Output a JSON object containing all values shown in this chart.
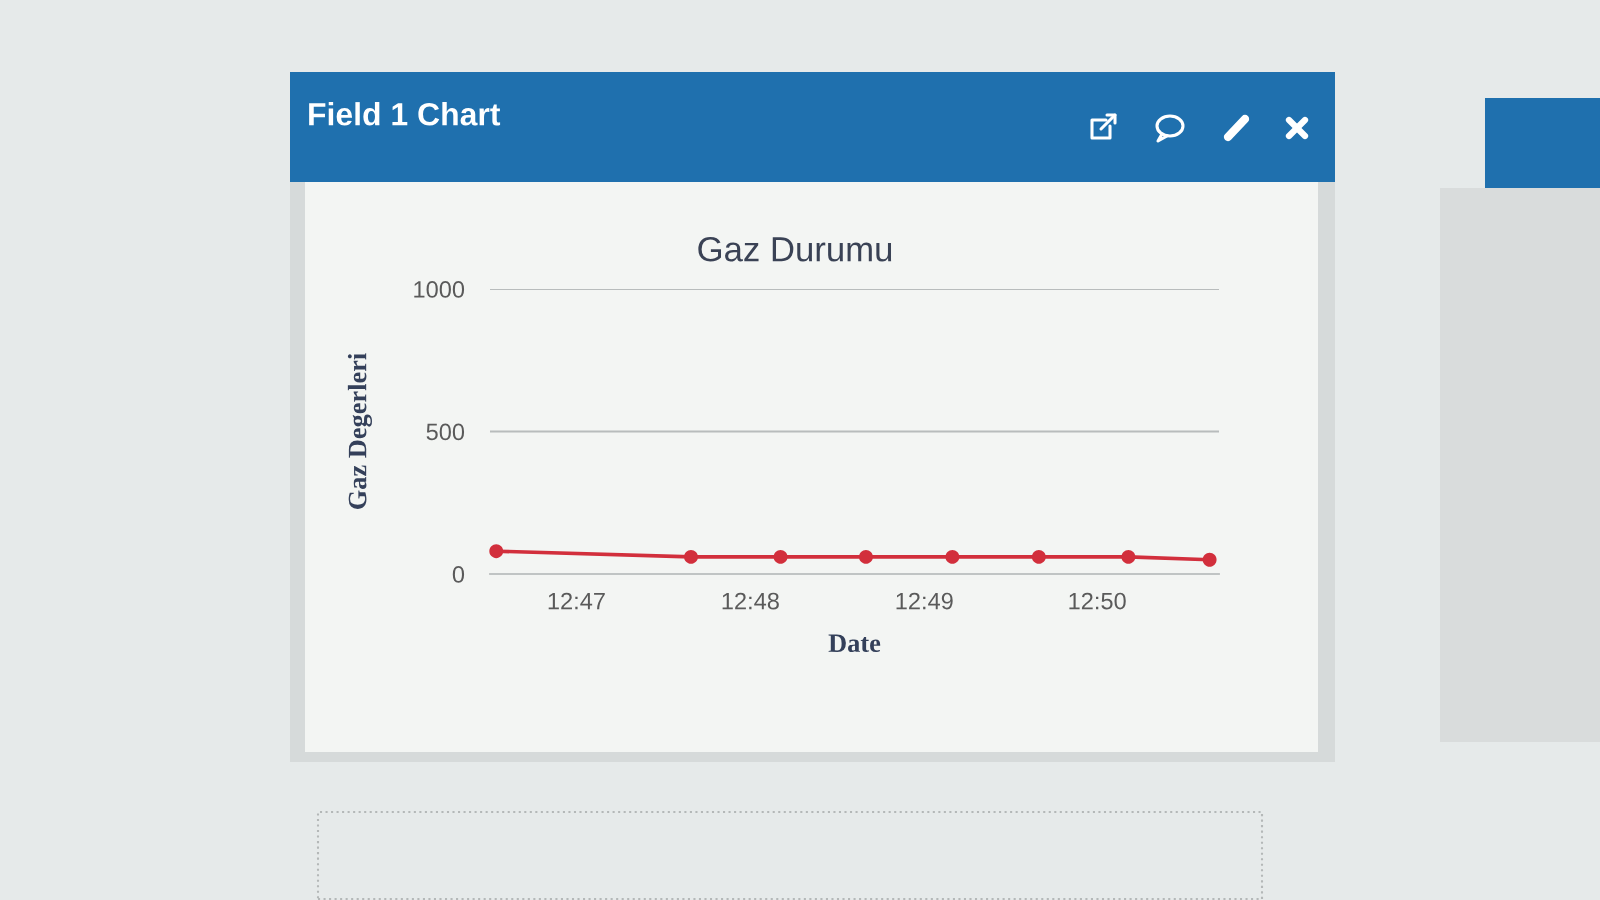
{
  "chart_data": {
    "type": "line",
    "title": "Gaz Durumu",
    "xlabel": "Date",
    "ylabel": "Gaz Degerleri",
    "annotations": [
      "Field 1 Chart"
    ],
    "x": [
      12.7756,
      12.7943,
      12.8029,
      12.8111,
      12.8194,
      12.8277,
      12.8363,
      12.8441
    ],
    "series": [
      {
        "color": "#d22f3c",
        "values": [
          80,
          60,
          60,
          60,
          60,
          60,
          60,
          50
        ]
      }
    ],
    "xlim": [
      12.775,
      12.845
    ],
    "xticks": [
      {
        "value": 12.7833,
        "label": "12:47"
      },
      {
        "value": 12.8,
        "label": "12:48"
      },
      {
        "value": 12.8167,
        "label": "12:49"
      },
      {
        "value": 12.8333,
        "label": "12:50"
      }
    ],
    "ylim": [
      0,
      1000
    ],
    "yticks": [
      0,
      500,
      1000
    ],
    "grid": "y",
    "marker": "circle",
    "line_style": "solid"
  }
}
